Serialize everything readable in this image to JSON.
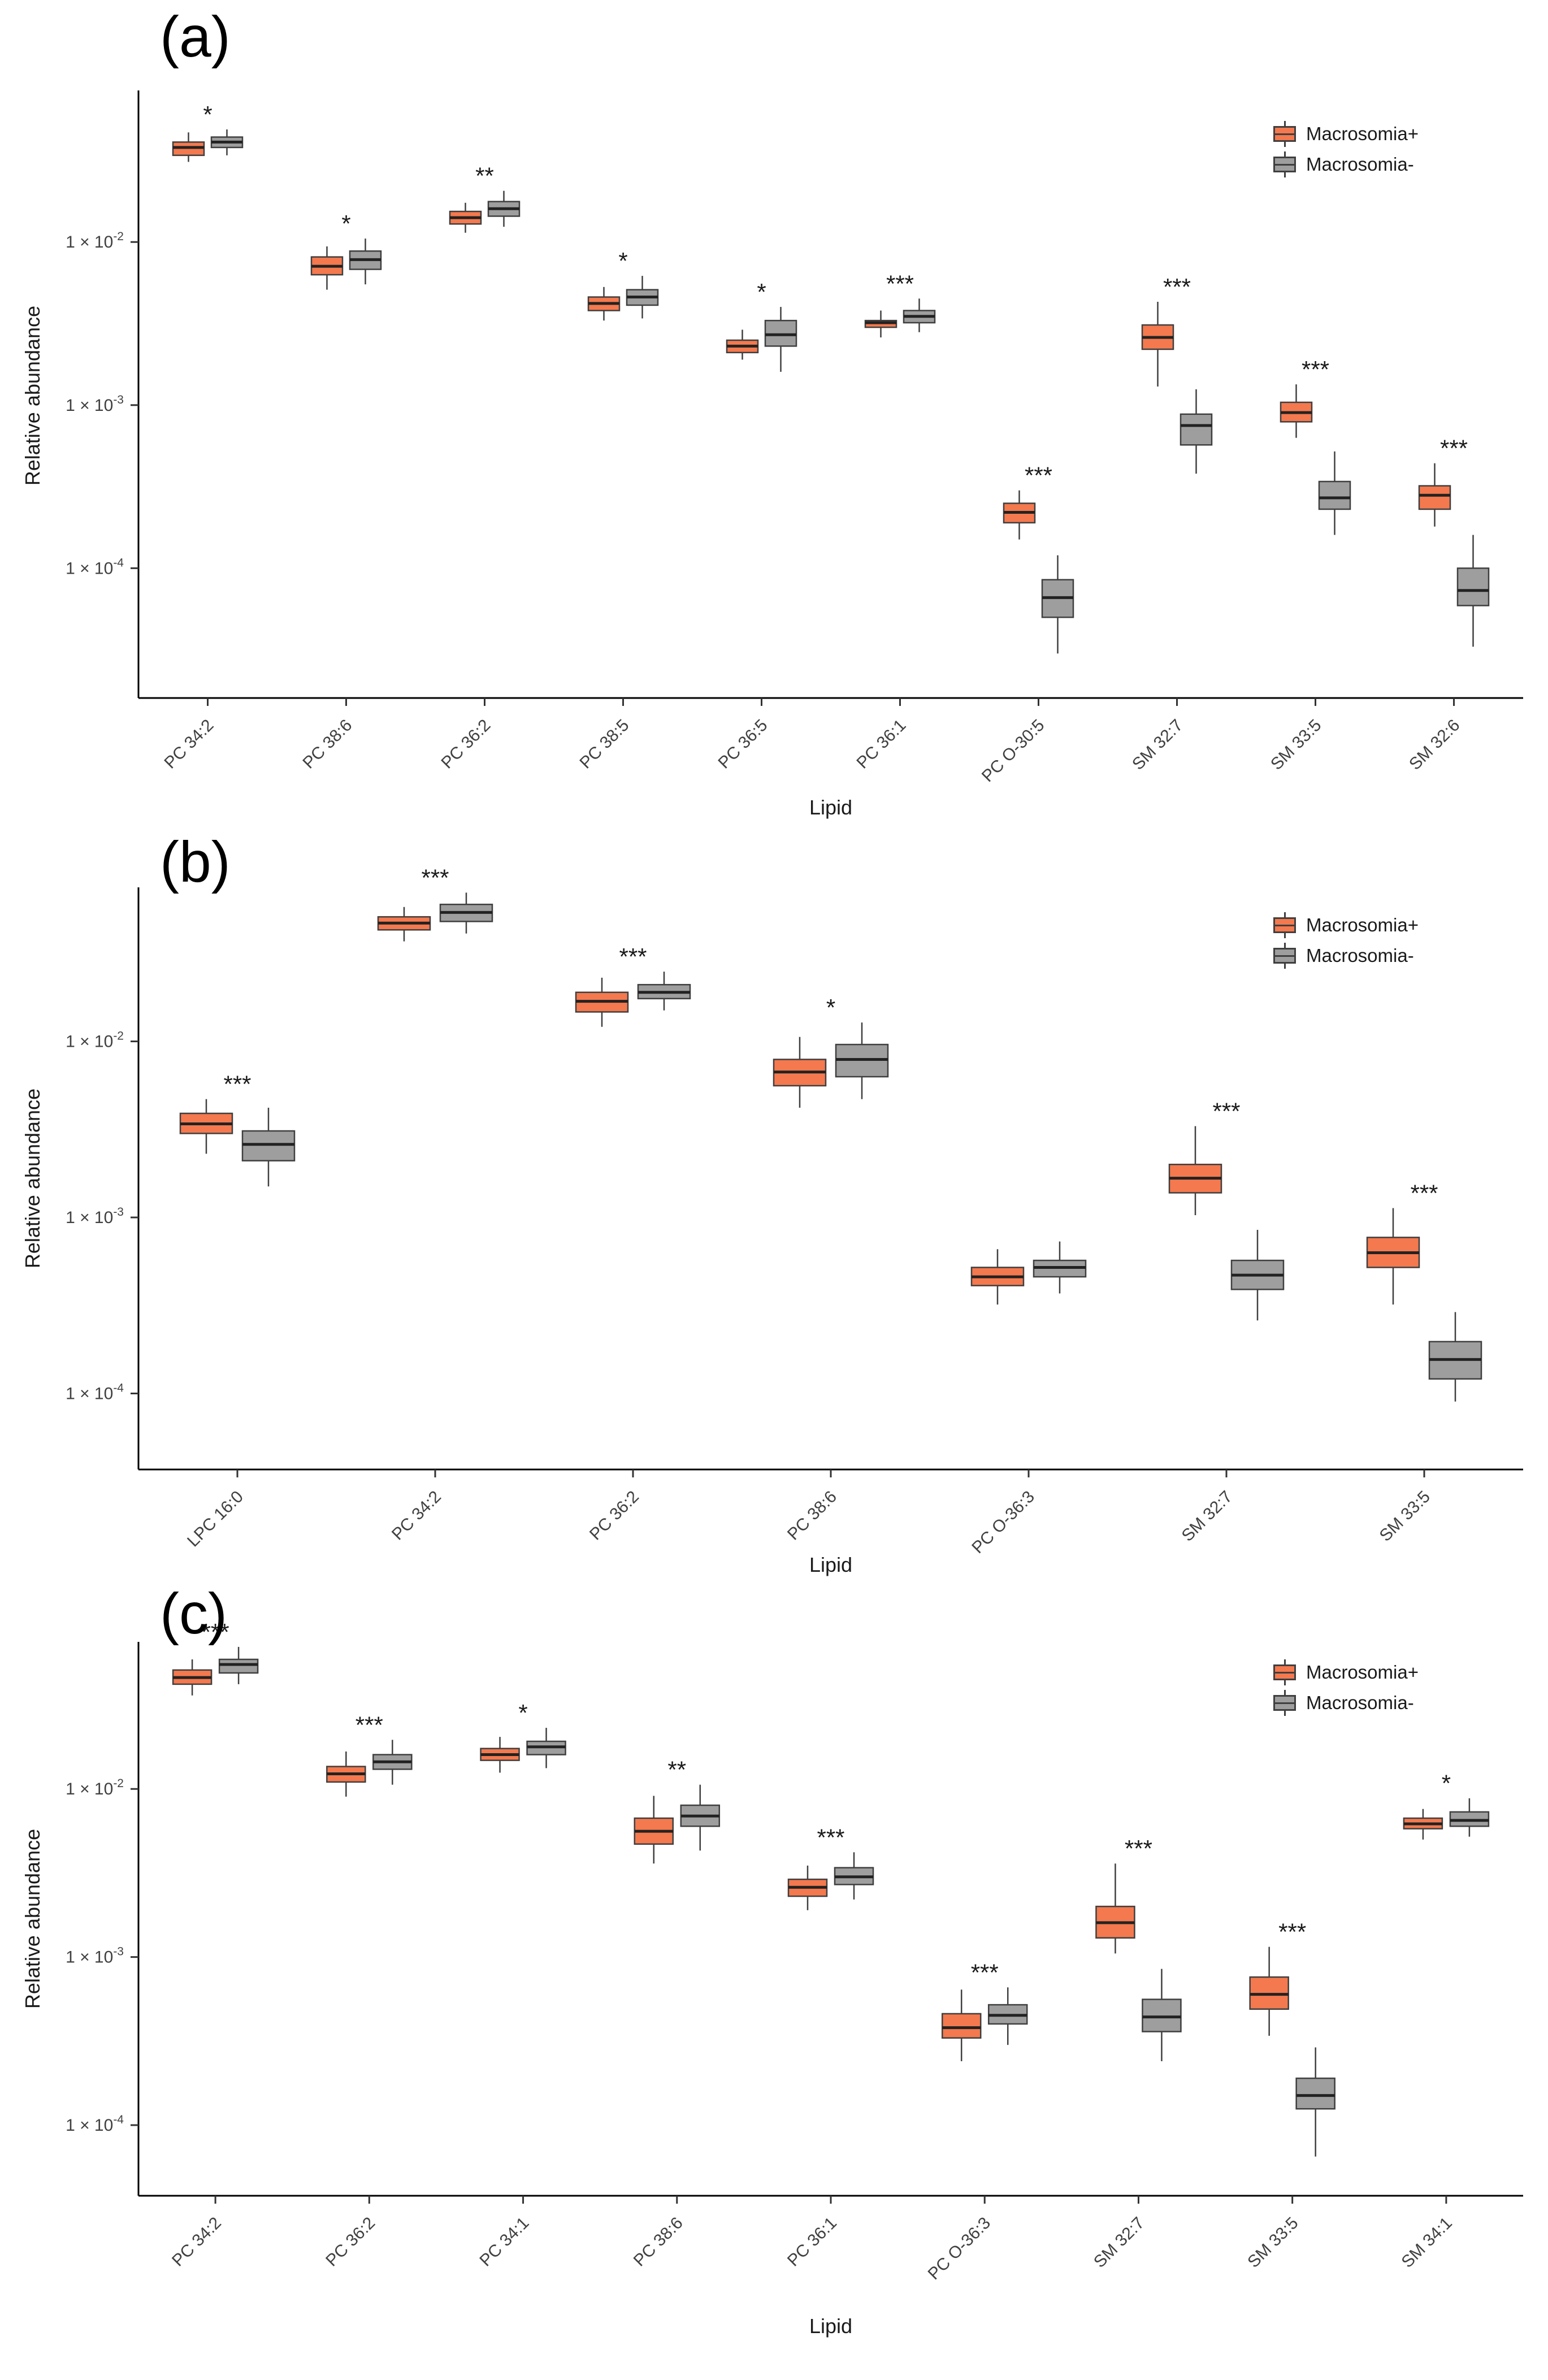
{
  "page": {
    "background": "#ffffff"
  },
  "colors": {
    "macrosomia_plus": "#F4794E",
    "macrosomia_minus": "#9E9E9E",
    "box_outline": "#3f3f3f",
    "axis": "#000000",
    "text": "#404040"
  },
  "legend": {
    "items": [
      {
        "label": "Macrosomia+",
        "color": "#F4794E"
      },
      {
        "label": "Macrosomia-",
        "color": "#9E9E9E"
      }
    ]
  },
  "chart_data": [
    {
      "type": "boxplot",
      "panel_label": "(a)",
      "xlabel": "Lipid",
      "ylabel": "Relative abundance",
      "y_scale": "log10",
      "y_tick_base": "1 × 10",
      "y_tick_exponents": [
        -2,
        -3,
        -4
      ],
      "ylim": [
        1.6e-05,
        0.085
      ],
      "legend_position": "top-right",
      "categories": [
        "PC 34:2",
        "PC 38:6",
        "PC 36:2",
        "PC 38:5",
        "PC 36:5",
        "PC 36:1",
        "PC O-30:5",
        "SM 32:7",
        "SM 33:5",
        "SM 32:6"
      ],
      "significance": [
        "*",
        "*",
        "**",
        "*",
        "*",
        "***",
        "***",
        "***",
        "***",
        "***"
      ],
      "box_format": [
        "min",
        "q1",
        "median",
        "q3",
        "max"
      ],
      "series": [
        {
          "name": "Macrosomia+",
          "color": "#F4794E",
          "boxes": [
            [
              0.031,
              0.034,
              0.038,
              0.041,
              0.047
            ],
            [
              0.0051,
              0.0063,
              0.0071,
              0.0081,
              0.0094
            ],
            [
              0.0114,
              0.0129,
              0.0141,
              0.0154,
              0.0174
            ],
            [
              0.0033,
              0.0038,
              0.0042,
              0.0046,
              0.0053
            ],
            [
              0.0019,
              0.0021,
              0.0023,
              0.0025,
              0.0029
            ],
            [
              0.0026,
              0.003,
              0.0032,
              0.0033,
              0.0038
            ],
            [
              0.00015,
              0.00019,
              0.00022,
              0.00025,
              0.0003
            ],
            [
              0.0013,
              0.0022,
              0.0026,
              0.0031,
              0.0043
            ],
            [
              0.00063,
              0.00079,
              0.0009,
              0.00104,
              0.00134
            ],
            [
              0.00018,
              0.00023,
              0.00028,
              0.00032,
              0.00044
            ]
          ]
        },
        {
          "name": "Macrosomia-",
          "color": "#9E9E9E",
          "boxes": [
            [
              0.034,
              0.038,
              0.041,
              0.044,
              0.049
            ],
            [
              0.0055,
              0.0068,
              0.0078,
              0.0088,
              0.0105
            ],
            [
              0.0124,
              0.0144,
              0.016,
              0.0177,
              0.0206
            ],
            [
              0.0034,
              0.0041,
              0.0046,
              0.0051,
              0.0062
            ],
            [
              0.0016,
              0.0023,
              0.0027,
              0.0033,
              0.004
            ],
            [
              0.0028,
              0.0032,
              0.0035,
              0.0038,
              0.0045
            ],
            [
              3e-05,
              5e-05,
              6.6e-05,
              8.5e-05,
              0.00012
            ],
            [
              0.00038,
              0.00057,
              0.00075,
              0.00088,
              0.00125
            ],
            [
              0.00016,
              0.00023,
              0.00027,
              0.00034,
              0.00052
            ],
            [
              3.3e-05,
              5.9e-05,
              7.3e-05,
              0.0001,
              0.00016
            ]
          ]
        }
      ]
    },
    {
      "type": "boxplot",
      "panel_label": "(b)",
      "xlabel": "Lipid",
      "ylabel": "Relative abundance",
      "y_scale": "log10",
      "y_tick_base": "1 × 10",
      "y_tick_exponents": [
        -2,
        -3,
        -4
      ],
      "ylim": [
        3.7e-05,
        0.075
      ],
      "legend_position": "top-right",
      "categories": [
        "LPC 16:0",
        "PC 34:2",
        "PC 36:2",
        "PC 38:6",
        "PC O-36:3",
        "SM 32:7",
        "SM 33:5"
      ],
      "significance": [
        "***",
        "***",
        "***",
        "*",
        "",
        "***",
        "***"
      ],
      "box_format": [
        "min",
        "q1",
        "median",
        "q3",
        "max"
      ],
      "series": [
        {
          "name": "Macrosomia+",
          "color": "#F4794E",
          "boxes": [
            [
              0.0023,
              0.003,
              0.0034,
              0.0039,
              0.0047
            ],
            [
              0.037,
              0.043,
              0.047,
              0.051,
              0.058
            ],
            [
              0.0121,
              0.0147,
              0.0169,
              0.019,
              0.023
            ],
            [
              0.0042,
              0.0056,
              0.0067,
              0.0079,
              0.0106
            ],
            [
              0.00032,
              0.00041,
              0.00046,
              0.00052,
              0.00066
            ],
            [
              0.00103,
              0.00138,
              0.00167,
              0.002,
              0.0033
            ],
            [
              0.00032,
              0.00052,
              0.00063,
              0.00077,
              0.00113
            ]
          ]
        },
        {
          "name": "Macrosomia-",
          "color": "#9E9E9E",
          "boxes": [
            [
              0.0015,
              0.0021,
              0.0026,
              0.0031,
              0.0042
            ],
            [
              0.041,
              0.048,
              0.054,
              0.06,
              0.07
            ],
            [
              0.015,
              0.0175,
              0.019,
              0.021,
              0.0249
            ],
            [
              0.0047,
              0.0063,
              0.0079,
              0.0096,
              0.0128
            ],
            [
              0.00037,
              0.00046,
              0.00052,
              0.00057,
              0.00073
            ],
            [
              0.00026,
              0.00039,
              0.00047,
              0.00057,
              0.00085
            ],
            [
              9e-05,
              0.000121,
              0.000156,
              0.000197,
              0.00029
            ]
          ]
        }
      ]
    },
    {
      "type": "boxplot",
      "panel_label": "(c)",
      "xlabel": "Lipid",
      "ylabel": "Relative abundance",
      "y_scale": "log10",
      "y_tick_base": "1 × 10",
      "y_tick_exponents": [
        -2,
        -3,
        -4
      ],
      "ylim": [
        3.8e-05,
        0.075
      ],
      "legend_position": "top-right",
      "categories": [
        "PC 34:2",
        "PC 36:2",
        "PC 34:1",
        "PC 38:6",
        "PC 36:1",
        "PC O-36:3",
        "SM 32:7",
        "SM 33:5",
        "SM 34:1"
      ],
      "significance": [
        "***",
        "***",
        "*",
        "**",
        "***",
        "***",
        "***",
        "***",
        "*"
      ],
      "box_format": [
        "min",
        "q1",
        "median",
        "q3",
        "max"
      ],
      "series": [
        {
          "name": "Macrosomia+",
          "color": "#F4794E",
          "boxes": [
            [
              0.036,
              0.042,
              0.046,
              0.051,
              0.059
            ],
            [
              0.009,
              0.011,
              0.0123,
              0.0136,
              0.0167
            ],
            [
              0.0125,
              0.0148,
              0.016,
              0.0174,
              0.0204
            ],
            [
              0.0036,
              0.0047,
              0.0056,
              0.0067,
              0.0091
            ],
            [
              0.0019,
              0.0023,
              0.0026,
              0.0029,
              0.0035
            ],
            [
              0.00024,
              0.00033,
              0.00038,
              0.00046,
              0.00064
            ],
            [
              0.00105,
              0.0013,
              0.0016,
              0.002,
              0.0036
            ],
            [
              0.00034,
              0.00049,
              0.0006,
              0.00076,
              0.00115
            ],
            [
              0.005,
              0.0058,
              0.0062,
              0.0067,
              0.0076
            ]
          ]
        },
        {
          "name": "Macrosomia-",
          "color": "#9E9E9E",
          "boxes": [
            [
              0.042,
              0.049,
              0.055,
              0.059,
              0.07
            ],
            [
              0.0106,
              0.0131,
              0.0145,
              0.016,
              0.0196
            ],
            [
              0.0133,
              0.016,
              0.0178,
              0.0192,
              0.0231
            ],
            [
              0.0043,
              0.006,
              0.0069,
              0.008,
              0.0106
            ],
            [
              0.0022,
              0.0027,
              0.003,
              0.0034,
              0.0042
            ],
            [
              0.0003,
              0.0004,
              0.00045,
              0.00052,
              0.00066
            ],
            [
              0.00024,
              0.00036,
              0.00044,
              0.00056,
              0.00085
            ],
            [
              6.5e-05,
              0.000125,
              0.00015,
              0.00019,
              0.00029
            ],
            [
              0.0052,
              0.006,
              0.0065,
              0.0073,
              0.0088
            ]
          ]
        }
      ]
    }
  ]
}
